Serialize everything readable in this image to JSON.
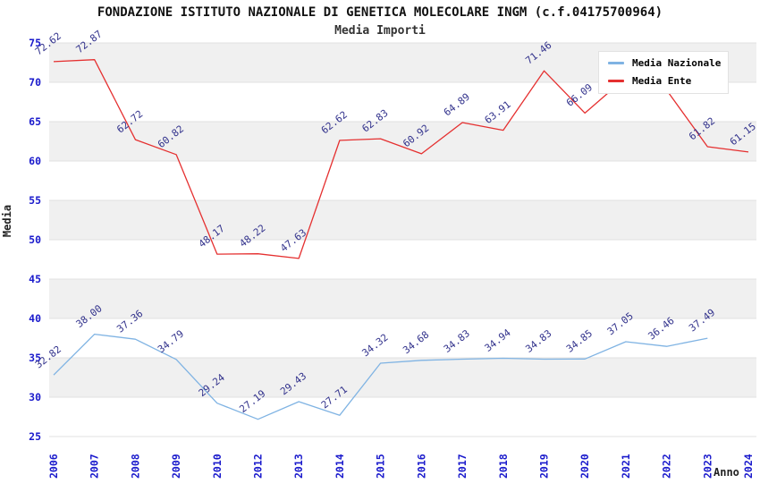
{
  "page": {
    "title_line1": "FONDAZIONE ISTITUTO NAZIONALE DI GENETICA MOLECOLARE INGM (c.f.04175700964)",
    "title_line2": "Media Importi"
  },
  "axes": {
    "y_label": "Media",
    "x_label": "Anno"
  },
  "legend": {
    "items": [
      {
        "label": "Media Nazionale",
        "color": "#7fb3e3"
      },
      {
        "label": "Media Ente",
        "color": "#e53030"
      }
    ]
  },
  "chart_data": {
    "type": "line",
    "title": "FONDAZIONE ISTITUTO NAZIONALE DI GENETICA MOLECOLARE INGM (c.f.04175700964)",
    "subtitle": "Media Importi",
    "xlabel": "Anno",
    "ylabel": "Media",
    "ylim": [
      25,
      75
    ],
    "ytick_step": 5,
    "grid": true,
    "legend_position": "top-right",
    "band_colors": [
      "#f0f0f0",
      "#ffffff"
    ],
    "categories": [
      "2006",
      "2007",
      "2008",
      "2009",
      "2010",
      "2012",
      "2013",
      "2014",
      "2015",
      "2016",
      "2017",
      "2018",
      "2019",
      "2020",
      "2021",
      "2022",
      "2023",
      "2024"
    ],
    "series": [
      {
        "name": "Media Nazionale",
        "color": "#7fb3e3",
        "values": [
          32.82,
          38.0,
          37.36,
          34.79,
          29.24,
          27.19,
          29.43,
          27.71,
          34.32,
          34.68,
          34.83,
          34.94,
          34.83,
          34.85,
          37.05,
          36.46,
          37.49,
          null
        ],
        "labels": [
          "32.82",
          "38.00",
          "37.36",
          "34.79",
          "29.24",
          "27.19",
          "29.43",
          "27.71",
          "34.32",
          "34.68",
          "34.83",
          "34.94",
          "34.83",
          "34.85",
          "37.05",
          "36.46",
          "37.49",
          null
        ]
      },
      {
        "name": "Media Ente",
        "color": "#e53030",
        "values": [
          72.62,
          72.87,
          62.72,
          60.82,
          48.17,
          48.22,
          47.63,
          62.62,
          62.83,
          60.92,
          64.89,
          63.91,
          71.46,
          66.09,
          70.6,
          69.0,
          61.82,
          61.15
        ],
        "labels": [
          "72.62",
          "72.87",
          "62.72",
          "60.82",
          "48.17",
          "48.22",
          "47.63",
          "62.62",
          "62.83",
          "60.92",
          "64.89",
          "63.91",
          "71.46",
          "66.09",
          null,
          null,
          "61.82",
          "61.15"
        ]
      }
    ]
  }
}
